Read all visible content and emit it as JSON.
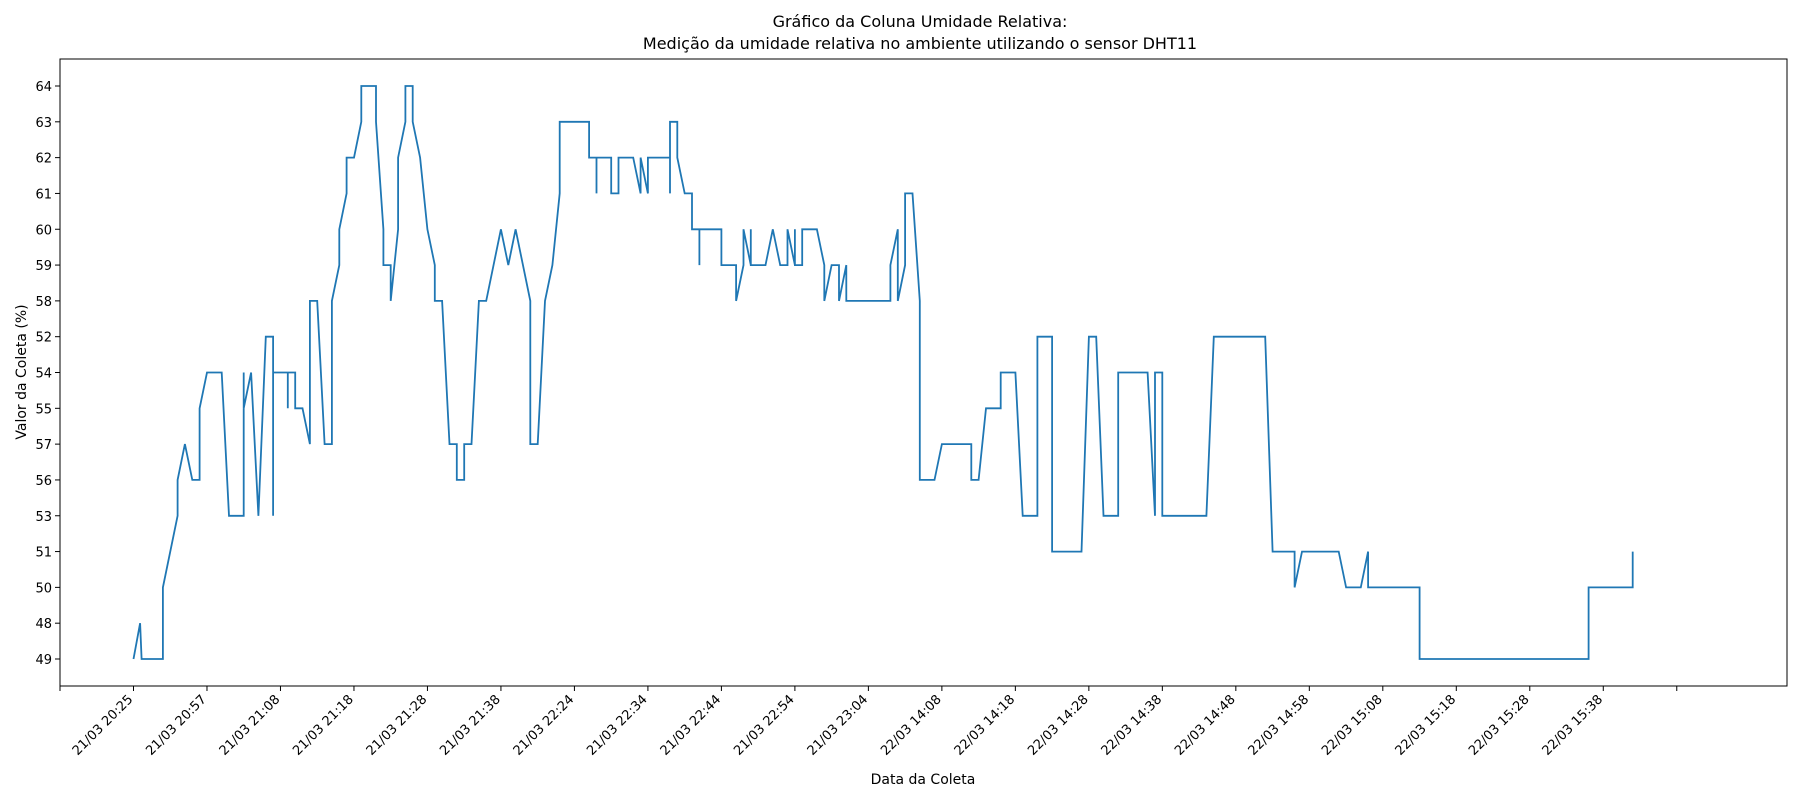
{
  "chart_data": {
    "type": "line",
    "title_line1": "Gráfico da Coluna Umidade Relativa:",
    "title_line2": "Medição da umidade relativa no ambiente utilizando o sensor DHT11",
    "xlabel": "Data da Coleta",
    "ylabel": "Valor da Coleta (%)",
    "y_categories": [
      "49",
      "48",
      "50",
      "51",
      "53",
      "56",
      "57",
      "55",
      "54",
      "52",
      "58",
      "59",
      "60",
      "61",
      "62",
      "63",
      "64"
    ],
    "x_ticks": [
      "21/03 20:25",
      "21/03 20:57",
      "21/03 21:08",
      "21/03 21:18",
      "21/03 21:28",
      "21/03 21:38",
      "21/03 22:24",
      "21/03 22:34",
      "21/03 22:44",
      "21/03 22:54",
      "21/03 23:04",
      "22/03 14:08",
      "22/03 14:18",
      "22/03 14:28",
      "22/03 14:38",
      "22/03 14:48",
      "22/03 14:58",
      "22/03 15:08",
      "22/03 15:18",
      "22/03 15:28",
      "22/03 15:38"
    ],
    "x_range": [
      -1,
      22.5
    ],
    "line_color": "#1f77b4",
    "grid": false,
    "series": [
      {
        "points": [
          [
            0,
            "49"
          ],
          [
            0.09,
            "48"
          ],
          [
            0.11,
            "49"
          ],
          [
            0.4,
            "49"
          ],
          [
            0.4,
            "50"
          ],
          [
            0.6,
            "53"
          ],
          [
            0.6,
            "56"
          ],
          [
            0.7,
            "57"
          ],
          [
            0.8,
            "56"
          ],
          [
            0.9,
            "56"
          ],
          [
            0.9,
            "55"
          ],
          [
            1.0,
            "54"
          ],
          [
            1.2,
            "54"
          ],
          [
            1.3,
            "53"
          ],
          [
            1.5,
            "53"
          ],
          [
            1.5,
            "54"
          ],
          [
            1.5,
            "55"
          ],
          [
            1.6,
            "54"
          ],
          [
            1.7,
            "53"
          ],
          [
            1.8,
            "52"
          ],
          [
            1.9,
            "52"
          ],
          [
            1.9,
            "53"
          ],
          [
            1.9,
            "54"
          ],
          [
            2.1,
            "54"
          ],
          [
            2.1,
            "55"
          ],
          [
            2.1,
            "54"
          ],
          [
            2.2,
            "54"
          ],
          [
            2.2,
            "55"
          ],
          [
            2.3,
            "55"
          ],
          [
            2.4,
            "57"
          ],
          [
            2.4,
            "58"
          ],
          [
            2.5,
            "58"
          ],
          [
            2.6,
            "57"
          ],
          [
            2.7,
            "57"
          ],
          [
            2.7,
            "58"
          ],
          [
            2.8,
            "59"
          ],
          [
            2.8,
            "60"
          ],
          [
            2.9,
            "61"
          ],
          [
            2.9,
            "62"
          ],
          [
            3.0,
            "62"
          ],
          [
            3.1,
            "63"
          ],
          [
            3.1,
            "64"
          ],
          [
            3.3,
            "64"
          ],
          [
            3.3,
            "63"
          ],
          [
            3.4,
            "60"
          ],
          [
            3.4,
            "59"
          ],
          [
            3.5,
            "59"
          ],
          [
            3.5,
            "58"
          ],
          [
            3.6,
            "60"
          ],
          [
            3.6,
            "62"
          ],
          [
            3.7,
            "63"
          ],
          [
            3.7,
            "64"
          ],
          [
            3.8,
            "64"
          ],
          [
            3.8,
            "63"
          ],
          [
            3.9,
            "62"
          ],
          [
            4.0,
            "60"
          ],
          [
            4.1,
            "59"
          ],
          [
            4.1,
            "58"
          ],
          [
            4.2,
            "58"
          ],
          [
            4.3,
            "57"
          ],
          [
            4.4,
            "57"
          ],
          [
            4.4,
            "56"
          ],
          [
            4.5,
            "56"
          ],
          [
            4.5,
            "57"
          ],
          [
            4.6,
            "57"
          ],
          [
            4.7,
            "58"
          ],
          [
            4.8,
            "58"
          ],
          [
            5.0,
            "60"
          ],
          [
            5.1,
            "59"
          ],
          [
            5.2,
            "60"
          ],
          [
            5.4,
            "58"
          ],
          [
            5.4,
            "57"
          ],
          [
            5.5,
            "57"
          ],
          [
            5.6,
            "58"
          ],
          [
            5.7,
            "59"
          ],
          [
            5.8,
            "61"
          ],
          [
            5.8,
            "62"
          ],
          [
            5.8,
            "63"
          ],
          [
            6.2,
            "63"
          ],
          [
            6.2,
            "62"
          ],
          [
            6.3,
            "62"
          ],
          [
            6.3,
            "61"
          ],
          [
            6.3,
            "62"
          ],
          [
            6.5,
            "62"
          ],
          [
            6.5,
            "61"
          ],
          [
            6.6,
            "61"
          ],
          [
            6.6,
            "62"
          ],
          [
            6.8,
            "62"
          ],
          [
            6.9,
            "61"
          ],
          [
            6.9,
            "62"
          ],
          [
            7.0,
            "61"
          ],
          [
            7.0,
            "62"
          ],
          [
            7.3,
            "62"
          ],
          [
            7.3,
            "61"
          ],
          [
            7.3,
            "63"
          ],
          [
            7.4,
            "63"
          ],
          [
            7.4,
            "62"
          ],
          [
            7.5,
            "61"
          ],
          [
            7.6,
            "61"
          ],
          [
            7.6,
            "60"
          ],
          [
            7.7,
            "60"
          ],
          [
            7.7,
            "59"
          ],
          [
            7.7,
            "60"
          ],
          [
            8.0,
            "60"
          ],
          [
            8.0,
            "59"
          ],
          [
            8.2,
            "59"
          ],
          [
            8.2,
            "58"
          ],
          [
            8.3,
            "59"
          ],
          [
            8.3,
            "60"
          ],
          [
            8.4,
            "59"
          ],
          [
            8.4,
            "60"
          ],
          [
            8.4,
            "59"
          ],
          [
            8.6,
            "59"
          ],
          [
            8.7,
            "60"
          ],
          [
            8.8,
            "59"
          ],
          [
            8.9,
            "59"
          ],
          [
            8.9,
            "60"
          ],
          [
            9.0,
            "59"
          ],
          [
            9.0,
            "60"
          ],
          [
            9.0,
            "59"
          ],
          [
            9.1,
            "59"
          ],
          [
            9.1,
            "60"
          ],
          [
            9.3,
            "60"
          ],
          [
            9.4,
            "59"
          ],
          [
            9.4,
            "58"
          ],
          [
            9.5,
            "59"
          ],
          [
            9.6,
            "59"
          ],
          [
            9.6,
            "58"
          ],
          [
            9.7,
            "59"
          ],
          [
            9.7,
            "58"
          ],
          [
            10.3,
            "58"
          ],
          [
            10.3,
            "59"
          ],
          [
            10.4,
            "60"
          ],
          [
            10.4,
            "58"
          ],
          [
            10.5,
            "59"
          ],
          [
            10.5,
            "61"
          ],
          [
            10.6,
            "61"
          ],
          [
            10.7,
            "58"
          ],
          [
            10.7,
            "56"
          ],
          [
            10.9,
            "56"
          ],
          [
            11.0,
            "57"
          ],
          [
            11.4,
            "57"
          ],
          [
            11.4,
            "56"
          ],
          [
            11.5,
            "56"
          ],
          [
            11.6,
            "55"
          ],
          [
            11.8,
            "55"
          ],
          [
            11.8,
            "54"
          ],
          [
            12.0,
            "54"
          ],
          [
            12.1,
            "53"
          ],
          [
            12.3,
            "53"
          ],
          [
            12.3,
            "52"
          ],
          [
            12.5,
            "52"
          ],
          [
            12.5,
            "51"
          ],
          [
            12.9,
            "51"
          ],
          [
            13.0,
            "52"
          ],
          [
            13.1,
            "52"
          ],
          [
            13.2,
            "53"
          ],
          [
            13.4,
            "53"
          ],
          [
            13.4,
            "54"
          ],
          [
            13.8,
            "54"
          ],
          [
            13.9,
            "53"
          ],
          [
            13.9,
            "54"
          ],
          [
            14.0,
            "54"
          ],
          [
            14.0,
            "53"
          ],
          [
            14.6,
            "53"
          ],
          [
            14.7,
            "52"
          ],
          [
            15.4,
            "52"
          ],
          [
            15.5,
            "51"
          ],
          [
            15.8,
            "51"
          ],
          [
            15.8,
            "50"
          ],
          [
            15.9,
            "51"
          ],
          [
            16.4,
            "51"
          ],
          [
            16.5,
            "50"
          ],
          [
            16.7,
            "50"
          ],
          [
            16.8,
            "51"
          ],
          [
            16.8,
            "50"
          ],
          [
            17.5,
            "50"
          ],
          [
            17.5,
            "49"
          ],
          [
            19.8,
            "49"
          ],
          [
            19.8,
            "50"
          ],
          [
            20.4,
            "50"
          ],
          [
            20.4,
            "51"
          ]
        ]
      }
    ]
  }
}
